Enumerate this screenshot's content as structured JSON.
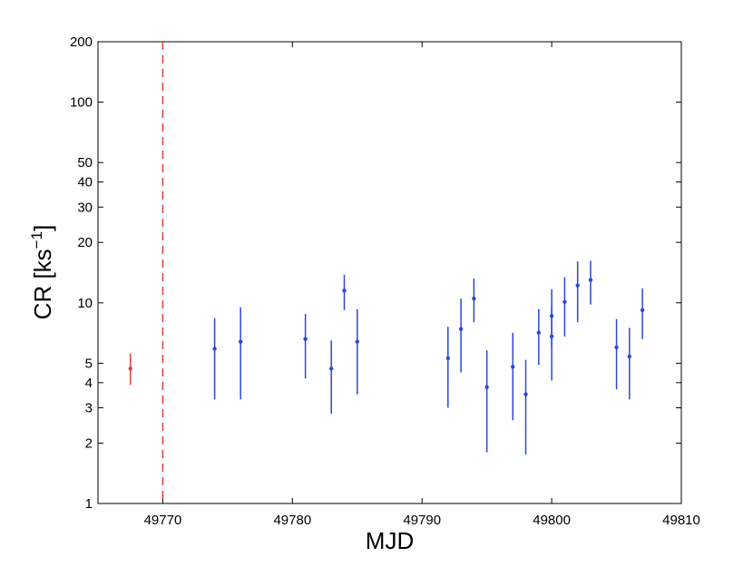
{
  "chart_data": {
    "type": "scatter",
    "xlabel": "MJD",
    "ylabel_main": "CR [ks",
    "ylabel_sup": "−1",
    "ylabel_close": "]",
    "xlim": [
      49765,
      49810
    ],
    "ylim": [
      1,
      200
    ],
    "yscale": "log",
    "grid": false,
    "x_ticks": [
      49770,
      49780,
      49790,
      49800,
      49810
    ],
    "x_tick_labels": [
      "49770",
      "49780",
      "49790",
      "49800",
      "49810"
    ],
    "y_ticks": [
      1,
      2,
      3,
      4,
      5,
      10,
      20,
      30,
      40,
      50,
      100,
      200
    ],
    "y_tick_labels": [
      "1",
      "2",
      "3",
      "4",
      "5",
      "10",
      "20",
      "30",
      "40",
      "50",
      "100",
      "200"
    ],
    "vline": {
      "x": 49770,
      "style": "dashed",
      "color": "#e23c3c"
    },
    "series": [
      {
        "color": "#e23c3c",
        "points": [
          {
            "x": 49767.5,
            "y": 4.7,
            "lo": 3.9,
            "hi": 5.6
          }
        ]
      },
      {
        "color": "#2e47d6",
        "points": [
          {
            "x": 49774,
            "y": 5.9,
            "lo": 3.3,
            "hi": 8.4
          },
          {
            "x": 49776,
            "y": 6.4,
            "lo": 3.3,
            "hi": 9.5
          },
          {
            "x": 49781,
            "y": 6.6,
            "lo": 4.2,
            "hi": 8.8
          },
          {
            "x": 49783,
            "y": 4.7,
            "lo": 2.8,
            "hi": 6.5
          },
          {
            "x": 49784,
            "y": 11.5,
            "lo": 9.2,
            "hi": 13.8
          },
          {
            "x": 49785,
            "y": 6.4,
            "lo": 3.5,
            "hi": 9.3
          },
          {
            "x": 49792,
            "y": 5.3,
            "lo": 3.0,
            "hi": 7.6
          },
          {
            "x": 49793,
            "y": 7.4,
            "lo": 4.5,
            "hi": 10.5
          },
          {
            "x": 49794,
            "y": 10.5,
            "lo": 8.0,
            "hi": 13.2
          },
          {
            "x": 49795,
            "y": 3.8,
            "lo": 1.8,
            "hi": 5.8
          },
          {
            "x": 49797,
            "y": 4.8,
            "lo": 2.6,
            "hi": 7.1
          },
          {
            "x": 49798,
            "y": 3.5,
            "lo": 1.75,
            "hi": 5.2
          },
          {
            "x": 49799,
            "y": 7.1,
            "lo": 4.9,
            "hi": 9.3
          },
          {
            "x": 49800,
            "y": 6.8,
            "lo": 4.1,
            "hi": 9.7
          },
          {
            "x": 49800,
            "y": 8.6,
            "lo": 6.0,
            "hi": 11.7
          },
          {
            "x": 49801,
            "y": 10.1,
            "lo": 6.8,
            "hi": 13.4
          },
          {
            "x": 49802,
            "y": 12.2,
            "lo": 8.0,
            "hi": 16.1
          },
          {
            "x": 49803,
            "y": 13.0,
            "lo": 9.8,
            "hi": 16.2
          },
          {
            "x": 49805,
            "y": 6.0,
            "lo": 3.7,
            "hi": 8.3
          },
          {
            "x": 49806,
            "y": 5.4,
            "lo": 3.3,
            "hi": 7.5
          },
          {
            "x": 49807,
            "y": 9.2,
            "lo": 6.6,
            "hi": 11.8
          }
        ]
      }
    ]
  }
}
